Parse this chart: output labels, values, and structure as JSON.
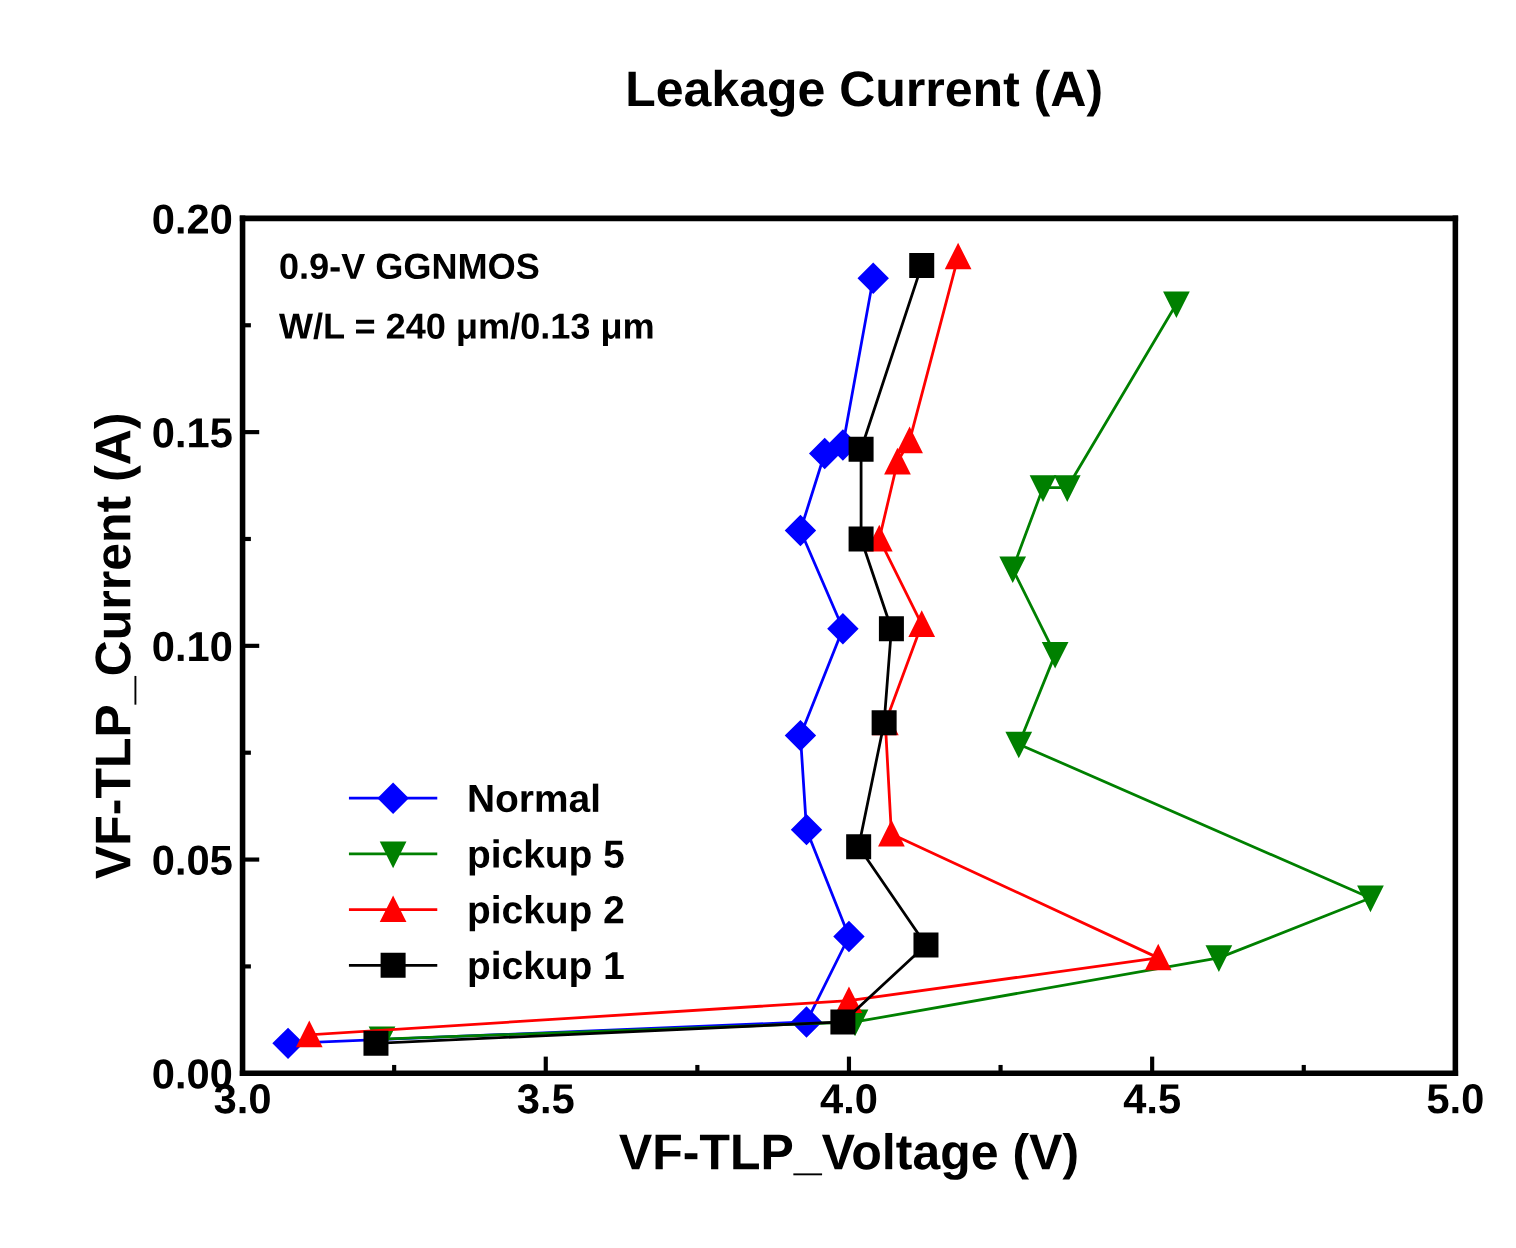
{
  "chart_data": {
    "type": "line",
    "title": "Leakage Current (A)",
    "xlabel": "VF-TLP_Voltage (V)",
    "ylabel": "VF-TLP_Current (A)",
    "annotations": [
      "0.9-V GGNMOS",
      "W/L = 240 μm/0.13 μm"
    ],
    "xlim": [
      3.0,
      5.0
    ],
    "xticks": [
      {
        "value": 3.0,
        "label": "3.0"
      },
      {
        "value": 3.5,
        "label": "3.5"
      },
      {
        "value": 4.0,
        "label": "4.0"
      },
      {
        "value": 4.5,
        "label": "4.5"
      },
      {
        "value": 5.0,
        "label": "5.0"
      }
    ],
    "ylim": [
      0.0,
      0.2
    ],
    "yticks": [
      {
        "value": 0.0,
        "label": "0.00"
      },
      {
        "value": 0.05,
        "label": "0.05"
      },
      {
        "value": 0.1,
        "label": "0.10"
      },
      {
        "value": 0.15,
        "label": "0.15"
      },
      {
        "value": 0.2,
        "label": "0.20"
      }
    ],
    "grid": false,
    "legend": "bottom left",
    "series": [
      {
        "name": "Normal",
        "color": "#0000ff",
        "marker": "diamond",
        "x": [
          3.075,
          3.93,
          4.0,
          3.93,
          3.92,
          3.99,
          3.92,
          3.96,
          3.99,
          4.04
        ],
        "values": [
          0.007,
          0.012,
          0.032,
          0.057,
          0.079,
          0.104,
          0.127,
          0.145,
          0.147,
          0.186
        ]
      },
      {
        "name": "pickup 5",
        "color": "#008000",
        "marker": "triangle_down",
        "x": [
          3.23,
          4.01,
          4.61,
          4.86,
          4.28,
          4.34,
          4.27,
          4.32,
          4.36,
          4.54
        ],
        "values": [
          0.008,
          0.012,
          0.027,
          0.041,
          0.077,
          0.098,
          0.118,
          0.137,
          0.137,
          0.18
        ]
      },
      {
        "name": "pickup 2",
        "color": "#ff0000",
        "marker": "triangle",
        "x": [
          3.11,
          4.0,
          4.51,
          4.07,
          4.06,
          4.12,
          4.05,
          4.08,
          4.1,
          4.18
        ],
        "values": [
          0.009,
          0.017,
          0.027,
          0.056,
          0.082,
          0.105,
          0.125,
          0.143,
          0.148,
          0.191
        ]
      },
      {
        "name": "pickup 1",
        "color": "#000000",
        "marker": "square",
        "x": [
          3.22,
          3.99,
          4.127,
          4.016,
          4.058,
          4.07,
          4.02,
          4.02,
          4.12
        ],
        "values": [
          0.007,
          0.012,
          0.03,
          0.053,
          0.082,
          0.104,
          0.125,
          0.146,
          0.189
        ]
      }
    ]
  }
}
